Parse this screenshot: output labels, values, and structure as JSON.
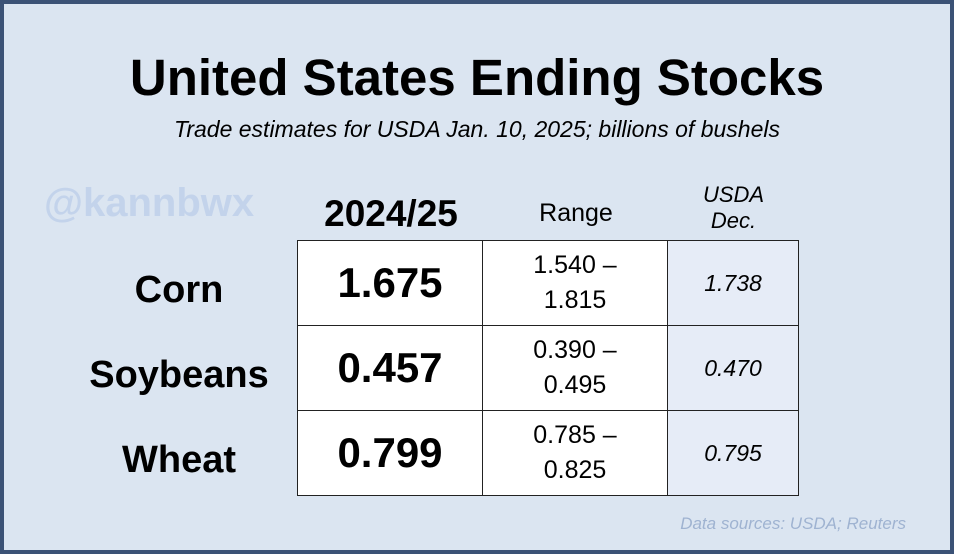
{
  "chart_data": {
    "type": "table",
    "title": "United States Ending Stocks",
    "subtitle": "Trade estimates for USDA Jan. 10, 2025; billions of bushels",
    "watermark": "@kannbwx",
    "columns": {
      "estimate": "2024/25",
      "range": "Range",
      "usda_line1": "USDA",
      "usda_line2": "Dec."
    },
    "rows": [
      {
        "label": "Corn",
        "estimate": "1.675",
        "range_low": "1.540 –",
        "range_high": "1.815",
        "usda_dec": "1.738"
      },
      {
        "label": "Soybeans",
        "estimate": "0.457",
        "range_low": "0.390 –",
        "range_high": "0.495",
        "usda_dec": "0.470"
      },
      {
        "label": "Wheat",
        "estimate": "0.799",
        "range_low": "0.785 –",
        "range_high": "0.825",
        "usda_dec": "0.795"
      }
    ],
    "source": "Data sources: USDA; Reuters"
  }
}
